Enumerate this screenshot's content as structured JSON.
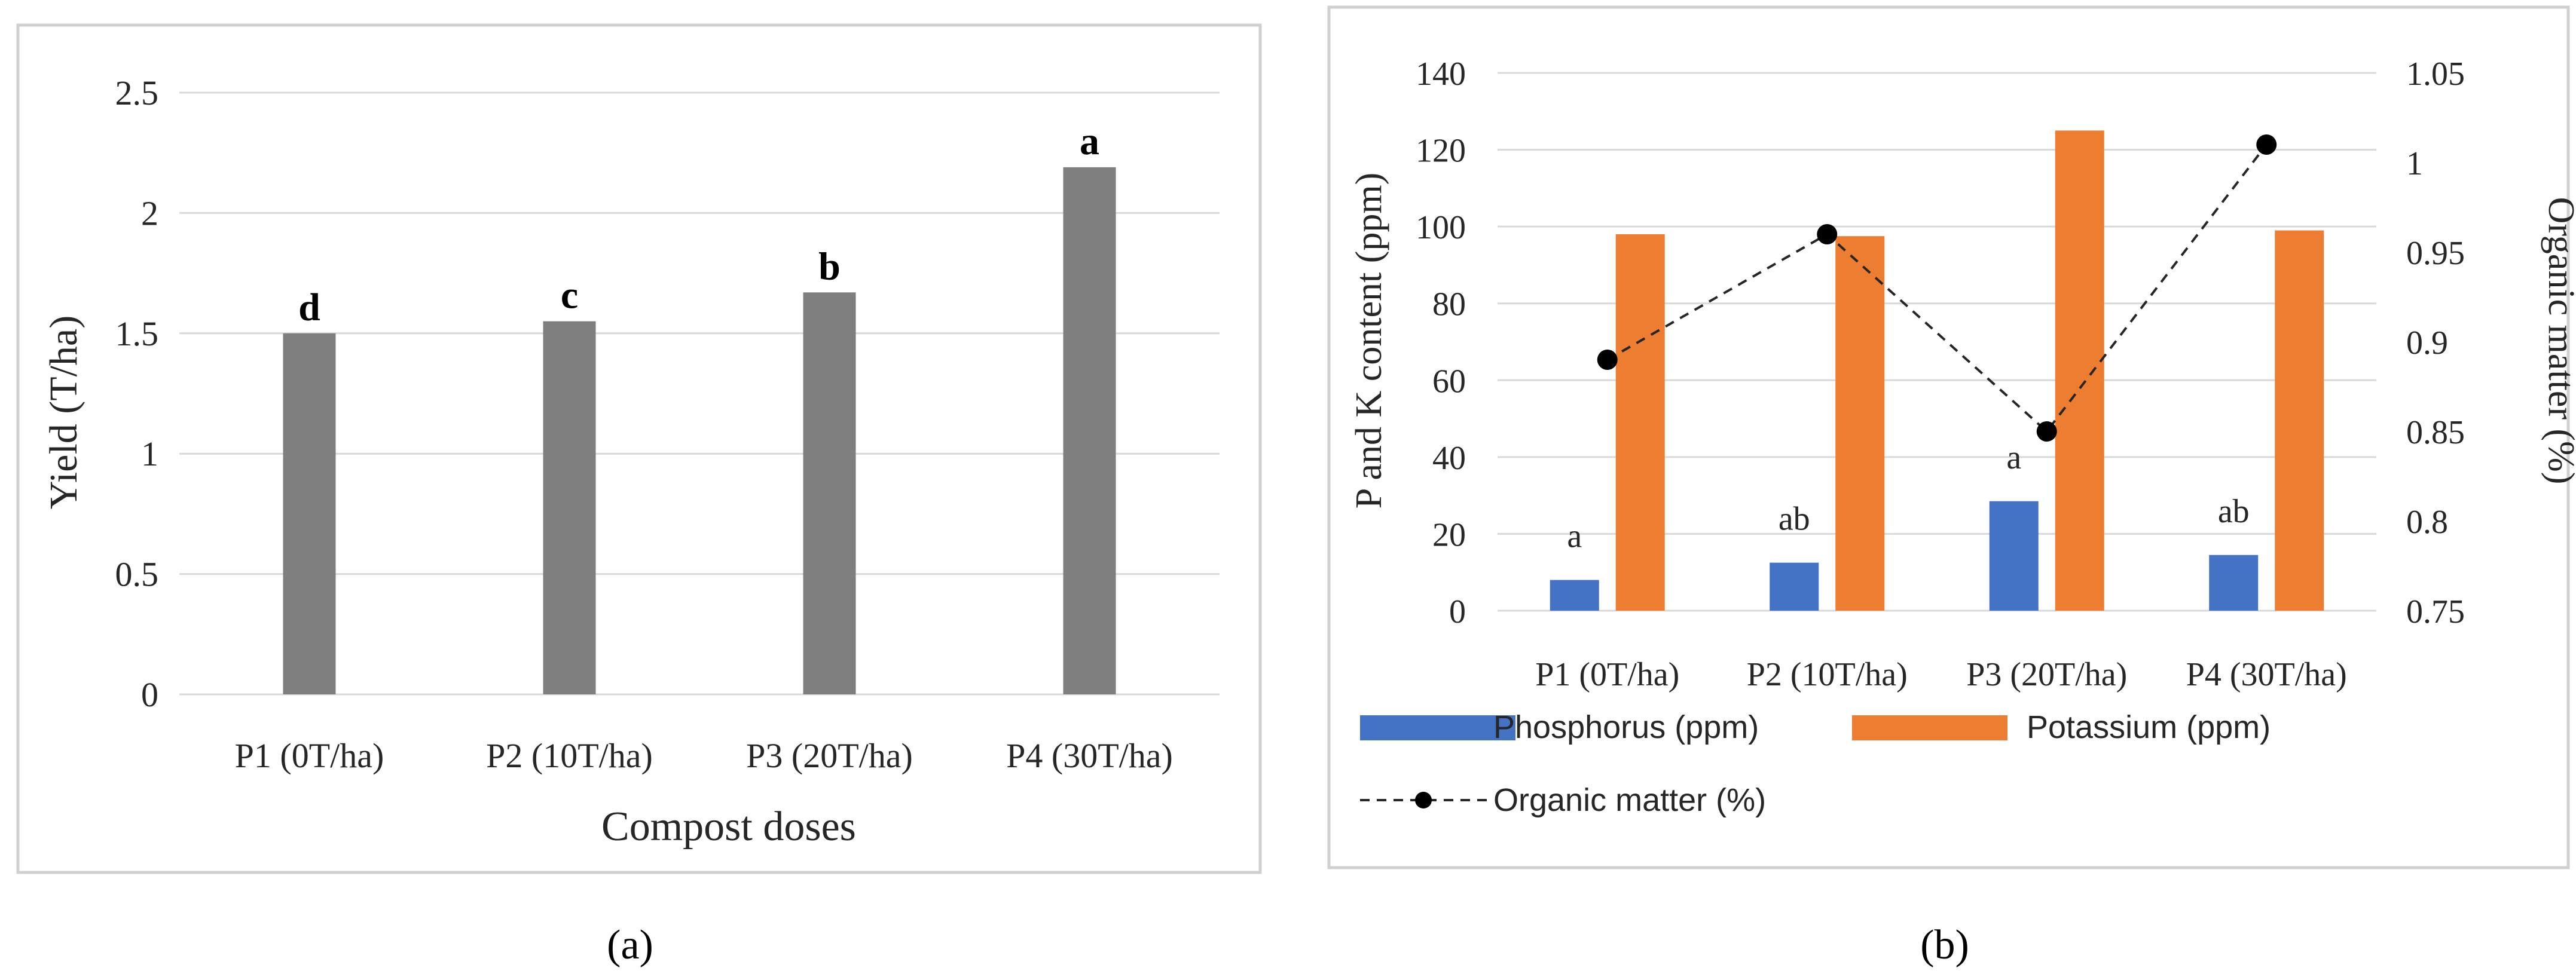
{
  "colors": {
    "frame": "#d0d0d0",
    "grid": "#d9d9d9",
    "axis": "#d9d9d9",
    "bar_a": "#7f7f7f",
    "phosphorus": "#4472c4",
    "potassium": "#ed7d31",
    "organic": "#262626",
    "text": "#262626"
  },
  "chart_data": [
    {
      "panel": "a",
      "type": "bar",
      "title": "",
      "xlabel": "Compost doses",
      "ylabel": "Yield (T/ha)",
      "ylim": [
        0,
        2.5
      ],
      "yticks": [
        0,
        0.5,
        1,
        1.5,
        2,
        2.5
      ],
      "ytick_labels": [
        "0",
        "0.5",
        "1",
        "1.5",
        "2",
        "2.5"
      ],
      "categories": [
        "P1 (0T/ha)",
        "P2 (10T/ha)",
        "P3 (20T/ha)",
        "P4 (30T/ha)"
      ],
      "values": [
        1.5,
        1.55,
        1.67,
        2.19
      ],
      "letters": [
        "d",
        "c",
        "b",
        "a"
      ],
      "grid": true,
      "caption": "(a)"
    },
    {
      "panel": "b",
      "type": "bar",
      "title": "",
      "xlabel": "",
      "ylabel": "P and K content (ppm)",
      "y2label": "Organic matter (%)",
      "ylim": [
        0,
        140
      ],
      "yticks": [
        0,
        20,
        40,
        60,
        80,
        100,
        120,
        140
      ],
      "ytick_labels": [
        "0",
        "20",
        "40",
        "60",
        "80",
        "100",
        "120",
        "140"
      ],
      "y2lim": [
        0.75,
        1.05
      ],
      "y2ticks": [
        0.75,
        0.8,
        0.85,
        0.9,
        0.95,
        1,
        1.05
      ],
      "y2tick_labels": [
        "0.75",
        "0.8",
        "0.85",
        "0.9",
        "0.95",
        "1",
        "1.05"
      ],
      "categories": [
        "P1 (0T/ha)",
        "P2 (10T/ha)",
        "P3 (20T/ha)",
        "P4 (30T/ha)"
      ],
      "series": [
        {
          "name": "Phosphorus (ppm)",
          "values": [
            8,
            12.5,
            28.5,
            14.5
          ],
          "axis": "left",
          "type": "bar",
          "letters": [
            "a",
            "ab",
            "a",
            "ab"
          ]
        },
        {
          "name": "Potassium (ppm)",
          "values": [
            98,
            97.5,
            125,
            99
          ],
          "axis": "left",
          "type": "bar"
        },
        {
          "name": "Organic matter (%)",
          "values": [
            0.89,
            0.96,
            0.85,
            1.01
          ],
          "axis": "right",
          "type": "line",
          "style": "dashed",
          "marker": "circle"
        }
      ],
      "legend": "bottom",
      "grid": true,
      "caption": "(b)"
    }
  ]
}
